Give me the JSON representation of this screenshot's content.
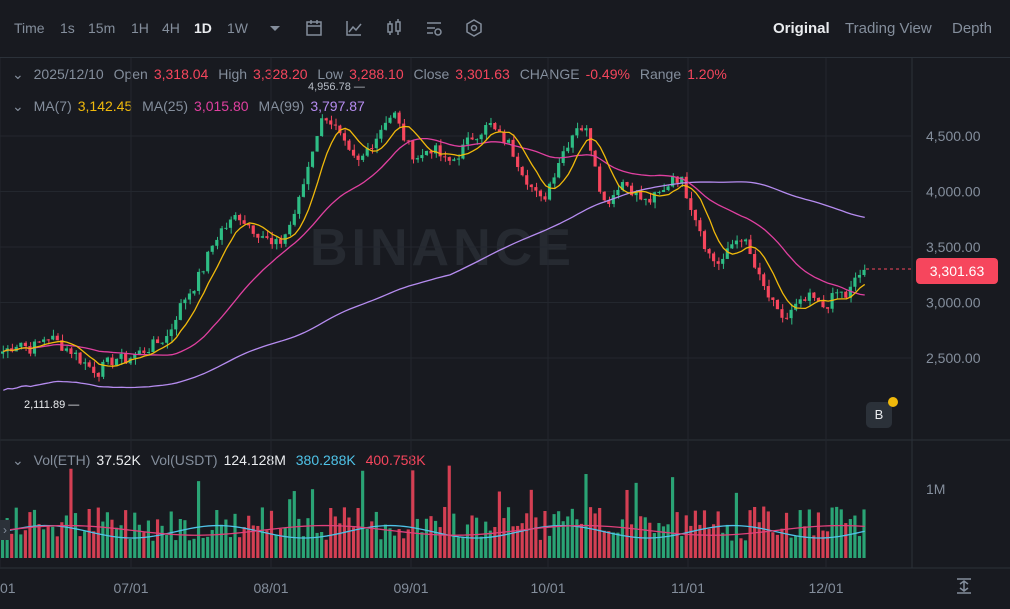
{
  "toolbar": {
    "intervals": [
      "Time",
      "1s",
      "15m",
      "1H",
      "4H",
      "1D",
      "1W"
    ],
    "active_interval": "1D",
    "views": [
      "Original",
      "Trading View",
      "Depth"
    ],
    "active_view": "Original"
  },
  "ohlc": {
    "date": "2025/12/10",
    "open_label": "Open",
    "open": "3,318.04",
    "high_label": "High",
    "high": "3,328.20",
    "low_label": "Low",
    "low": "3,288.10",
    "close_label": "Close",
    "close": "3,301.63",
    "change_label": "CHANGE",
    "change": "-0.49%",
    "range_label": "Range",
    "range": "1.20%"
  },
  "ma": {
    "ma7_label": "MA(7)",
    "ma7": "3,142.45",
    "ma25_label": "MA(25)",
    "ma25": "3,015.80",
    "ma99_label": "MA(99)",
    "ma99": "3,797.87"
  },
  "vol": {
    "eth_label": "Vol(ETH)",
    "eth": "37.52K",
    "usdt_label": "Vol(USDT)",
    "usdt": "124.128M",
    "ma1": "380.288K",
    "ma2": "400.758K"
  },
  "watermark": "BINANCE",
  "current_price": "3,301.63",
  "colors": {
    "up": "#2ebd85",
    "down": "#f6465d",
    "ma7": "#f0b90b",
    "ma25": "#e040a0",
    "ma99": "#b68cf0",
    "volma1": "#4fc3e8",
    "volma2": "#e0407a"
  },
  "chart_data": {
    "type": "candlestick",
    "price_axis": {
      "ticks": [
        "4,500.00",
        "4,000.00",
        "3,500.00",
        "3,000.00",
        "2,500.00"
      ],
      "tick_values": [
        4500,
        4000,
        3500,
        3000,
        2500
      ]
    },
    "volume_axis": {
      "ticks": [
        "1M"
      ],
      "tick_values": [
        1000000
      ]
    },
    "time_axis": {
      "ticks": [
        "01",
        "07/01",
        "08/01",
        "09/01",
        "10/01",
        "11/01",
        "12/01"
      ]
    },
    "annotations": {
      "high_label": "4,956.78",
      "low_label": "2,111.89"
    },
    "closes_sampled": [
      2560,
      2600,
      2650,
      2580,
      2620,
      2700,
      2660,
      2600,
      2560,
      2480,
      2420,
      2380,
      2450,
      2500,
      2480,
      2520,
      2560,
      2600,
      2650,
      2700,
      2900,
      3050,
      3150,
      3300,
      3500,
      3650,
      3700,
      3800,
      3720,
      3650,
      3600,
      3500,
      3550,
      3700,
      3900,
      4200,
      4500,
      4700,
      4600,
      4450,
      4300,
      4250,
      4400,
      4500,
      4650,
      4700,
      4500,
      4350,
      4300,
      4400,
      4350,
      4250,
      4300,
      4400,
      4500,
      4550,
      4600,
      4500,
      4450,
      4300,
      4150,
      4000,
      3900,
      4100,
      4300,
      4450,
      4600,
      4550,
      4300,
      3900,
      3950,
      4100,
      4050,
      3950,
      3900,
      3950,
      4000,
      4150,
      4100,
      3900,
      3700,
      3450,
      3350,
      3400,
      3550,
      3600,
      3400,
      3200,
      3050,
      2900,
      2850,
      2950,
      3000,
      3050,
      2950,
      3000,
      3100,
      3050,
      3200,
      3300
    ]
  }
}
